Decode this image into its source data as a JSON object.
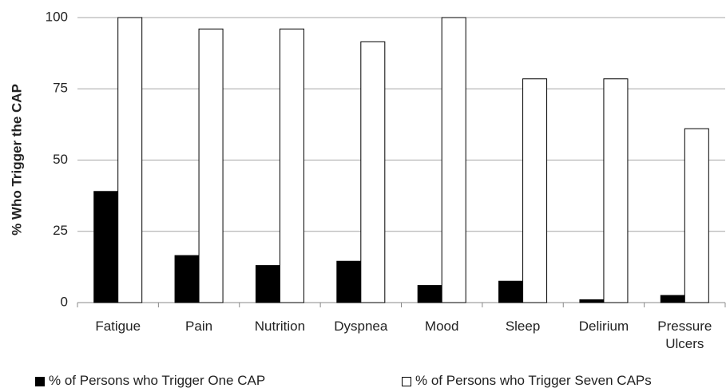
{
  "chart_data": {
    "type": "bar",
    "y_label": "% Who Trigger the CAP",
    "categories": [
      "Fatigue",
      "Pain",
      "Nutrition",
      "Dyspnea",
      "Mood",
      "Sleep",
      "Delirium",
      "Pressure Ulcers"
    ],
    "series": [
      {
        "name": "% of Persons who Trigger One CAP",
        "color": "#000000",
        "values": [
          39,
          16.5,
          13,
          14.5,
          6,
          7.5,
          1,
          2.5
        ]
      },
      {
        "name": "% of Persons who Trigger Seven CAPs",
        "color": "#ffffff",
        "values": [
          100,
          96,
          96,
          91.5,
          100,
          78.5,
          78.5,
          61
        ]
      }
    ],
    "ylim": [
      0,
      100
    ],
    "yticks": [
      0,
      25,
      50,
      75,
      100
    ],
    "grid": true,
    "legend": "bottom"
  }
}
